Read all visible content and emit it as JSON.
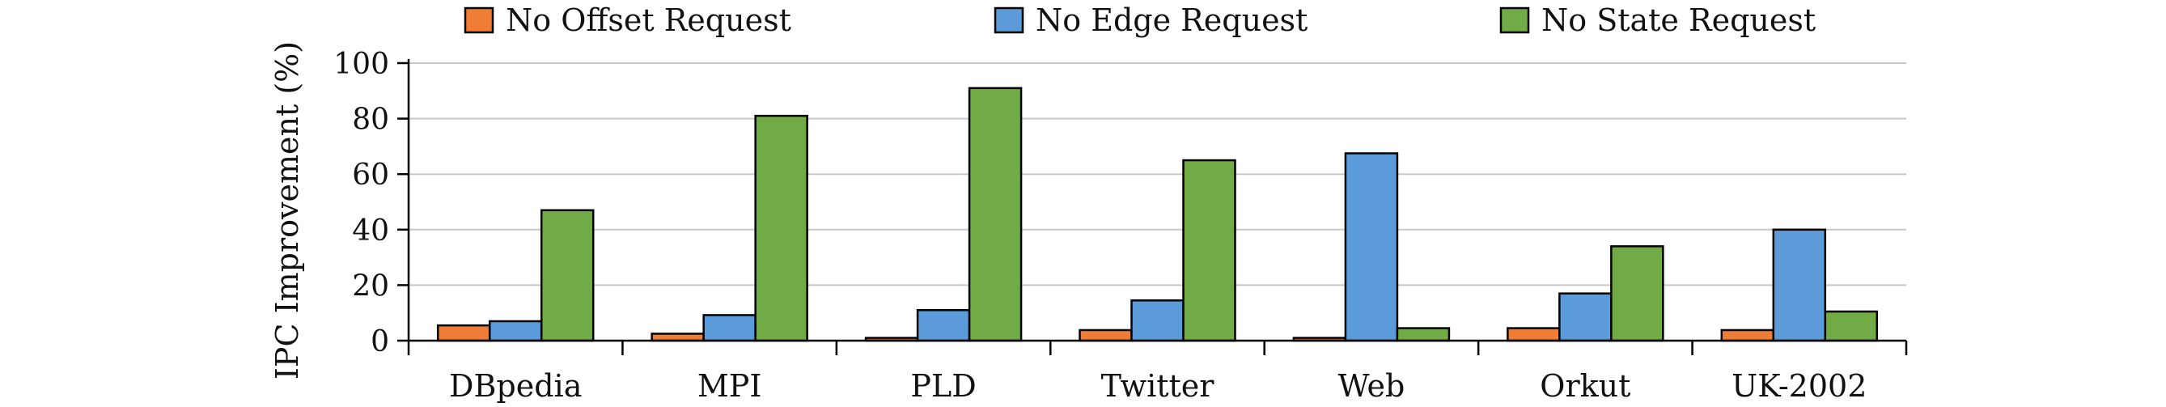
{
  "chart_data": {
    "type": "bar",
    "title": "",
    "xlabel": "",
    "ylabel": "IPC Improvement (%)",
    "ylim": [
      0,
      100
    ],
    "yticks": [
      0,
      20,
      40,
      60,
      80,
      100
    ],
    "grid": true,
    "legend_position": "top",
    "categories": [
      "DBpedia",
      "MPI",
      "PLD",
      "Twitter",
      "Web",
      "Orkut",
      "UK-2002"
    ],
    "series": [
      {
        "name": "No Offset Request",
        "color": "#f07d35",
        "values": [
          5.5,
          2.5,
          1.0,
          3.8,
          1.0,
          4.5,
          3.8
        ]
      },
      {
        "name": "No Edge Request",
        "color": "#5b9bd9",
        "values": [
          7.0,
          9.2,
          11.0,
          14.5,
          67.5,
          17.0,
          40.0
        ]
      },
      {
        "name": "No State Request",
        "color": "#70ab46",
        "values": [
          47.0,
          81.0,
          91.0,
          65.0,
          4.5,
          34.0,
          10.5
        ]
      }
    ]
  }
}
